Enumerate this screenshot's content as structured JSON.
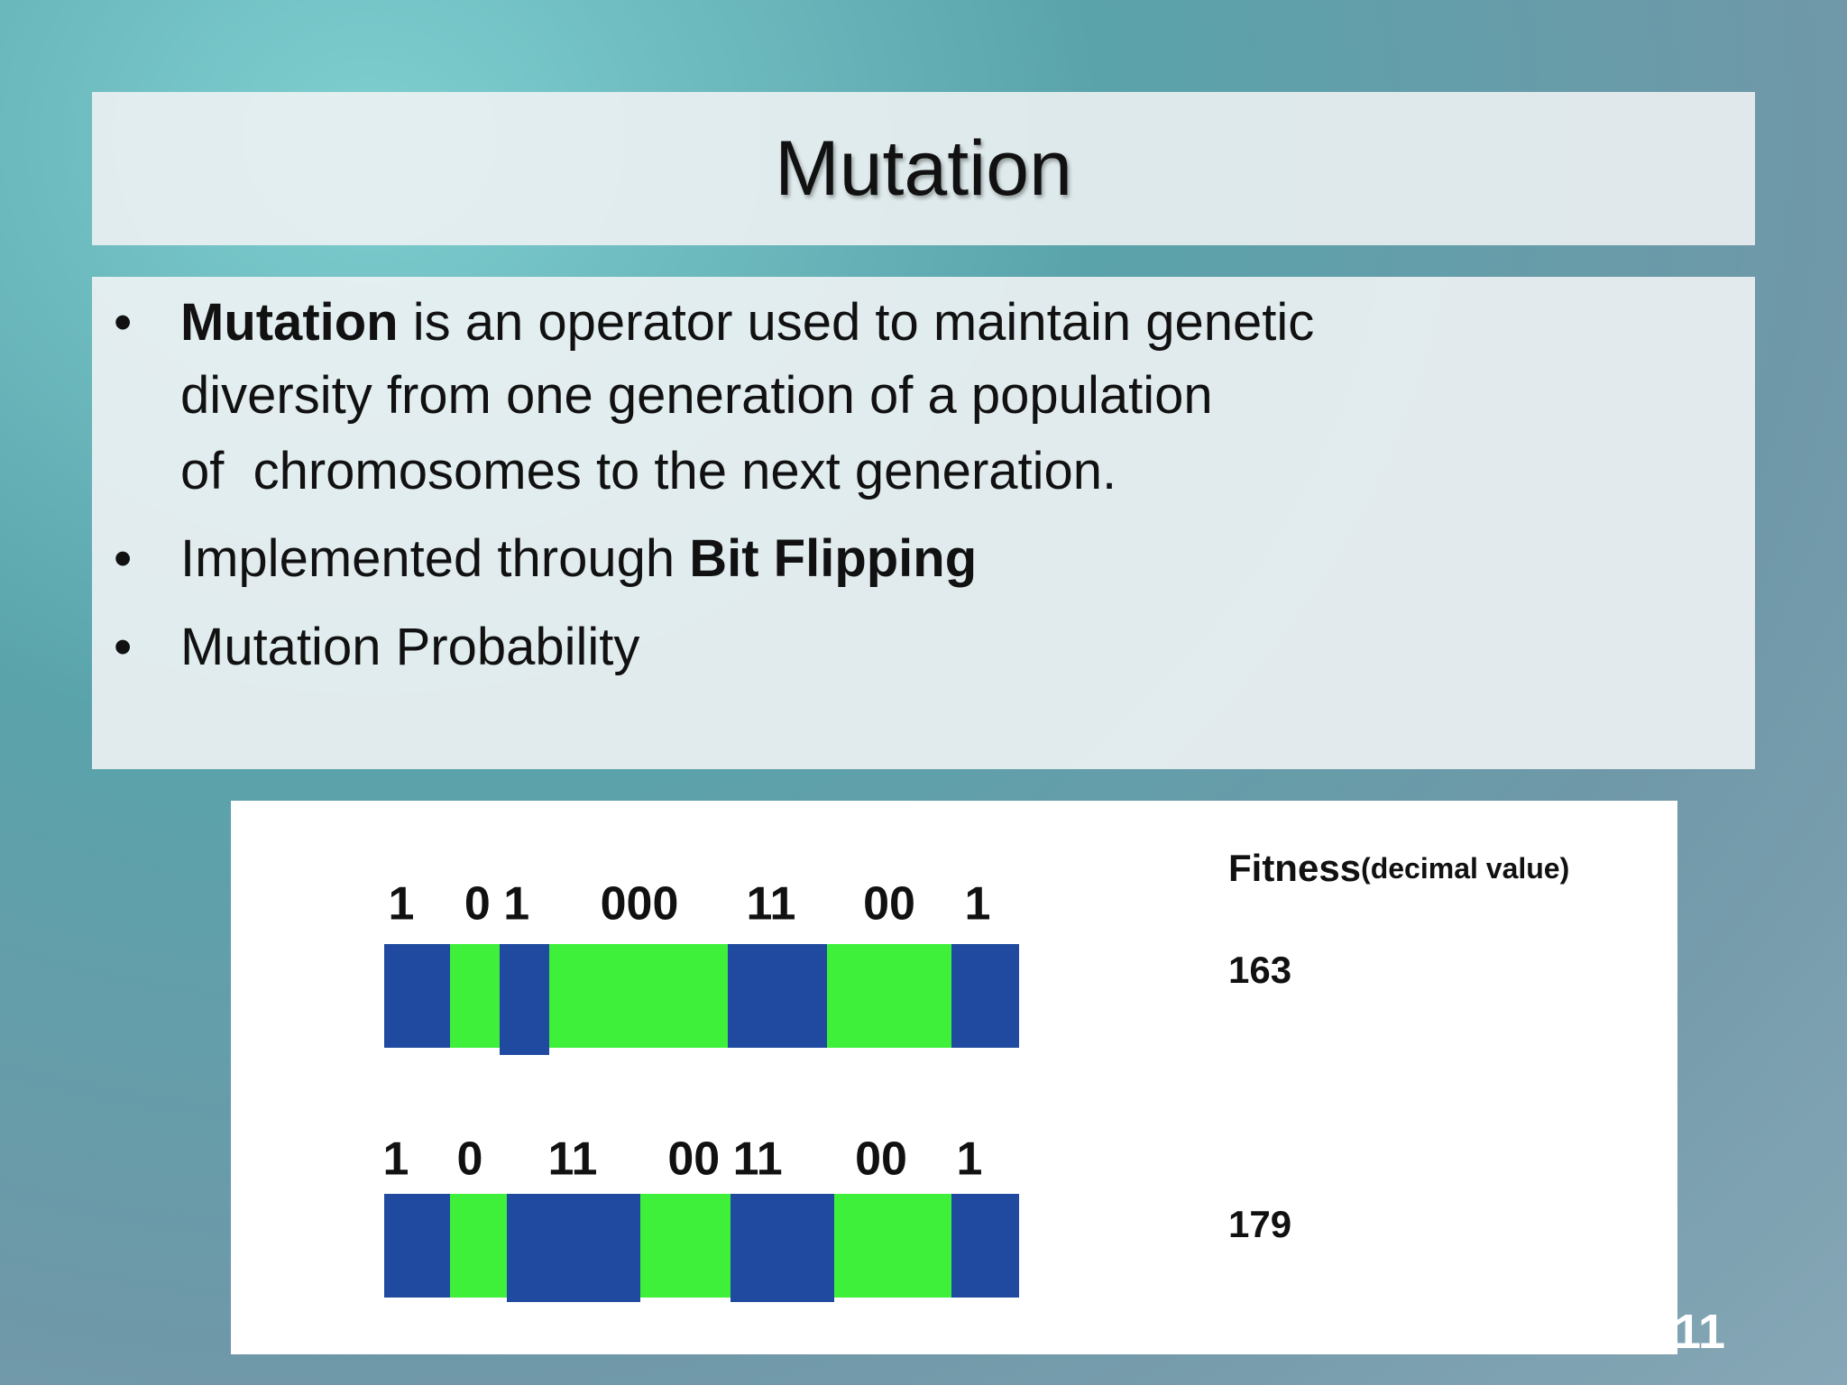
{
  "title": "Mutation",
  "bullets": [
    {
      "lines": [
        [
          {
            "text": "Mutation",
            "bold": true
          },
          {
            "text": " is an operator used to maintain genetic",
            "bold": false
          }
        ],
        [
          {
            "text": "diversity from one generation of a population",
            "bold": false
          }
        ],
        [
          {
            "text": "of  chromosomes to the next generation.",
            "bold": false
          }
        ]
      ]
    },
    {
      "lines": [
        [
          {
            "text": "Implemented through ",
            "bold": false
          },
          {
            "text": "Bit Flipping",
            "bold": true
          }
        ]
      ]
    },
    {
      "lines": [
        [
          {
            "text": "Mutation Probability",
            "bold": false
          }
        ]
      ]
    }
  ],
  "figure": {
    "fitness_header": "Fitness",
    "fitness_note": "(decimal value)",
    "rows": [
      {
        "bits": [
          "1",
          "0 1",
          "000",
          "11",
          "00",
          "1"
        ],
        "fitness": "163"
      },
      {
        "bits": [
          "1",
          "0",
          "11",
          "00 11",
          "00",
          "1"
        ],
        "fitness": "179"
      }
    ]
  },
  "page_number": "11"
}
